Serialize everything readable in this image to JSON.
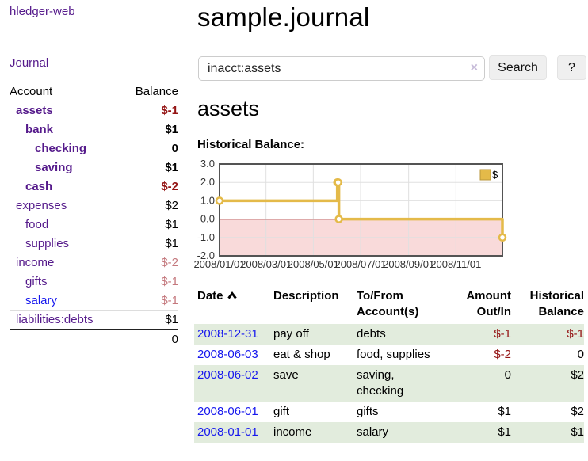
{
  "app": {
    "title": "hledger-web",
    "nav_journal_label": "Journal"
  },
  "sidebar": {
    "header": {
      "account": "Account",
      "balance": "Balance"
    },
    "accounts": [
      {
        "name": "assets",
        "indent": 1,
        "bold": true,
        "blue": false,
        "balance": "$-1",
        "balance_style": "neg-strong"
      },
      {
        "name": "bank",
        "indent": 2,
        "bold": true,
        "blue": false,
        "balance": "$1",
        "balance_style": "pos"
      },
      {
        "name": "checking",
        "indent": 3,
        "bold": true,
        "blue": false,
        "balance": "0",
        "balance_style": "pos"
      },
      {
        "name": "saving",
        "indent": 3,
        "bold": true,
        "blue": false,
        "balance": "$1",
        "balance_style": "pos"
      },
      {
        "name": "cash",
        "indent": 2,
        "bold": true,
        "blue": false,
        "balance": "$-2",
        "balance_style": "neg-strong"
      },
      {
        "name": "expenses",
        "indent": 1,
        "bold": false,
        "blue": false,
        "balance": "$2",
        "balance_style": "pos"
      },
      {
        "name": "food",
        "indent": 2,
        "bold": false,
        "blue": false,
        "balance": "$1",
        "balance_style": "pos"
      },
      {
        "name": "supplies",
        "indent": 2,
        "bold": false,
        "blue": false,
        "balance": "$1",
        "balance_style": "pos"
      },
      {
        "name": "income",
        "indent": 1,
        "bold": false,
        "blue": false,
        "balance": "$-2",
        "balance_style": "neg-dim"
      },
      {
        "name": "gifts",
        "indent": 2,
        "bold": false,
        "blue": false,
        "balance": "$-1",
        "balance_style": "neg-dim"
      },
      {
        "name": "salary",
        "indent": 2,
        "bold": false,
        "blue": true,
        "balance": "$-1",
        "balance_style": "neg-dim"
      },
      {
        "name": "liabilities:debts",
        "indent": 1,
        "bold": false,
        "blue": false,
        "balance": "$1",
        "balance_style": "pos"
      }
    ],
    "total": "0"
  },
  "main": {
    "title": "sample.journal",
    "search": {
      "value": "inacct:assets",
      "clear_glyph": "×",
      "button_label": "Search",
      "help_label": "?"
    },
    "account_heading": "assets",
    "chart_label": "Historical Balance:"
  },
  "chart_data": {
    "type": "line",
    "step": true,
    "title": "Historical Balance:",
    "series": [
      {
        "name": "$",
        "points": [
          [
            "2008-01-01",
            1
          ],
          [
            "2008-06-01",
            2
          ],
          [
            "2008-06-02",
            2
          ],
          [
            "2008-06-03",
            0
          ],
          [
            "2008-12-31",
            -1
          ]
        ]
      }
    ],
    "xrange": [
      "2008-01-01",
      "2008-12-31"
    ],
    "ylim": [
      -2,
      3
    ],
    "yticks": [
      {
        "label": "3.0",
        "value": 3
      },
      {
        "label": "2.0",
        "value": 2
      },
      {
        "label": "1.0",
        "value": 1
      },
      {
        "label": "0.0",
        "value": 0
      },
      {
        "label": "-1.0",
        "value": -1
      },
      {
        "label": "-2.0",
        "value": -2
      }
    ],
    "xticks": [
      {
        "label": "2008/01/01",
        "date": "2008-01-01"
      },
      {
        "label": "2008/03/01",
        "date": "2008-03-01"
      },
      {
        "label": "2008/05/01",
        "date": "2008-05-01"
      },
      {
        "label": "2008/07/01",
        "date": "2008-07-01"
      },
      {
        "label": "2008/09/01",
        "date": "2008-09-01"
      },
      {
        "label": "2008/11/01",
        "date": "2008-11-01"
      }
    ],
    "legend": {
      "label": "$",
      "position": "top-right"
    },
    "grid": true,
    "colors": {
      "line": "#e4ba49",
      "legend_border": "#b8963a",
      "negative_region": "#f9dada",
      "zero_line": "#8b1b1b",
      "gridline": "#e0e0e0",
      "plot_border": "#545454",
      "axis_text": "#333333"
    }
  },
  "register": {
    "headers": {
      "date": "Date",
      "description": "Description",
      "accounts": "To/From Account(s)",
      "amount": "Amount Out/In",
      "balance": "Historical Balance"
    },
    "sort_icon": "chevron-up",
    "rows": [
      {
        "date": "2008-12-31",
        "description": "pay off",
        "accounts": "debts",
        "amount": "$-1",
        "amount_neg": true,
        "balance": "$-1",
        "balance_neg": true
      },
      {
        "date": "2008-06-03",
        "description": "eat & shop",
        "accounts": "food, supplies",
        "amount": "$-2",
        "amount_neg": true,
        "balance": "0",
        "balance_neg": false
      },
      {
        "date": "2008-06-02",
        "description": "save",
        "accounts": "saving, checking",
        "amount": "0",
        "amount_neg": false,
        "balance": "$2",
        "balance_neg": false
      },
      {
        "date": "2008-06-01",
        "description": "gift",
        "accounts": "gifts",
        "amount": "$1",
        "amount_neg": false,
        "balance": "$2",
        "balance_neg": false
      },
      {
        "date": "2008-01-01",
        "description": "income",
        "accounts": "salary",
        "amount": "$1",
        "amount_neg": false,
        "balance": "$1",
        "balance_neg": false
      }
    ]
  }
}
